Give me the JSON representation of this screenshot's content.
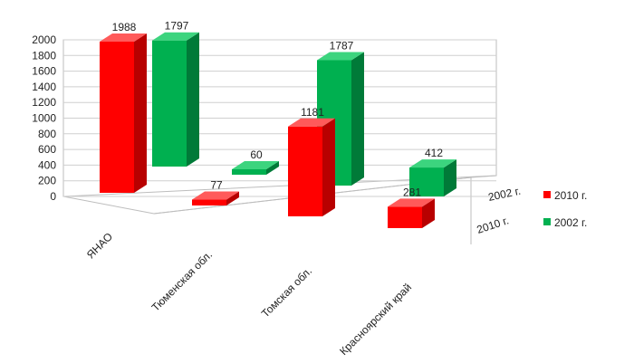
{
  "chart_data": {
    "type": "bar",
    "subtype": "3d-column",
    "categories": [
      "ЯНАО",
      "Тюменская обл.",
      "Томская обл.",
      "Красноярский край"
    ],
    "series": [
      {
        "name": "2010 г.",
        "values": [
          1988,
          77,
          1181,
          281
        ],
        "color": "#ff0000",
        "side": "#b80000",
        "top": "#ff5a5a"
      },
      {
        "name": "2002 г.",
        "values": [
          1797,
          60,
          1787,
          412
        ],
        "color": "#00b050",
        "side": "#007a38",
        "top": "#3cd47e"
      }
    ],
    "ylim": [
      0,
      2000
    ],
    "yticks": [
      0,
      200,
      400,
      600,
      800,
      1000,
      1200,
      1400,
      1600,
      1800,
      2000
    ],
    "depth_labels": [
      "2010 г.",
      "2002 г."
    ],
    "grid": true,
    "legend_position": "right"
  }
}
